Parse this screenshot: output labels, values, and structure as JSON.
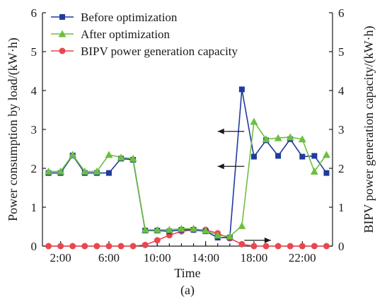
{
  "chart_data": {
    "type": "line",
    "xlabel": "Time",
    "ylabel_left": "Power consumption by load/(kW·h)",
    "ylabel_right": "BIPV power generation capacity/(kW·h)",
    "caption": "(a)",
    "xlim": [
      0.5,
      24.5
    ],
    "ylim_left": [
      0,
      6
    ],
    "ylim_right": [
      0,
      6
    ],
    "x": [
      1,
      2,
      3,
      4,
      5,
      6,
      7,
      8,
      9,
      10,
      11,
      12,
      13,
      14,
      15,
      16,
      17,
      18,
      19,
      20,
      21,
      22,
      23,
      24
    ],
    "x_ticks": [
      2,
      6,
      10,
      14,
      18,
      22
    ],
    "x_tick_labels": [
      "2:00",
      "6:00",
      "10:00",
      "14:00",
      "18:00",
      "22:00"
    ],
    "y_ticks_left": [
      0,
      1,
      2,
      3,
      4,
      5,
      6
    ],
    "y_ticks_right": [
      0,
      1,
      2,
      3,
      4,
      5,
      6
    ],
    "legend_position": "top-left",
    "series": [
      {
        "name": "Before optimization",
        "axis": "left",
        "color": "#1f3c9c",
        "marker": "square",
        "values": [
          1.88,
          1.88,
          2.33,
          1.88,
          1.88,
          1.88,
          2.25,
          2.22,
          0.4,
          0.4,
          0.38,
          0.42,
          0.42,
          0.38,
          0.22,
          0.22,
          4.03,
          2.3,
          2.72,
          2.32,
          2.75,
          2.3,
          2.32,
          1.88
        ]
      },
      {
        "name": "After optimization",
        "axis": "left",
        "color": "#6dbf3f",
        "marker": "triangle",
        "values": [
          1.92,
          1.92,
          2.35,
          1.92,
          1.92,
          2.35,
          2.28,
          2.25,
          0.42,
          0.42,
          0.42,
          0.45,
          0.45,
          0.4,
          0.28,
          0.25,
          0.52,
          3.2,
          2.75,
          2.78,
          2.8,
          2.75,
          1.92,
          2.35
        ]
      },
      {
        "name": "BIPV power generation capacity",
        "axis": "right",
        "color": "#e8474f",
        "marker": "circle",
        "values": [
          0,
          0,
          0,
          0,
          0,
          0,
          0,
          0,
          0.03,
          0.15,
          0.28,
          0.38,
          0.42,
          0.42,
          0.33,
          0.2,
          0.05,
          0,
          0,
          0,
          0,
          0,
          0,
          0
        ]
      }
    ],
    "annotations": [
      {
        "type": "arrow",
        "direction": "left",
        "from_x": 17.2,
        "to_x": 15.0,
        "y": 2.95
      },
      {
        "type": "arrow",
        "direction": "left",
        "from_x": 17.2,
        "to_x": 15.0,
        "y": 2.05
      },
      {
        "type": "arrow",
        "direction": "right",
        "from_x": 17.2,
        "to_x": 19.4,
        "y": 0.15
      }
    ]
  }
}
